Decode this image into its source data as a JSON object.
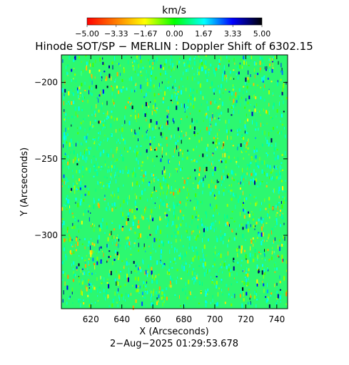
{
  "chart_data": {
    "type": "heatmap",
    "title": "Hinode SOT/SP − MERLIN : Doppler Shift of 6302.15",
    "xlabel": "X (Arcseconds)",
    "ylabel": "Y (Arcseconds)",
    "xlim": [
      601,
      747
    ],
    "ylim": [
      -348,
      -182
    ],
    "x_ticks": [
      620,
      640,
      660,
      680,
      700,
      720,
      740
    ],
    "y_ticks": [
      -200,
      -250,
      -300
    ],
    "x_tick_labels": [
      "620",
      "640",
      "660",
      "680",
      "700",
      "720",
      "740"
    ],
    "y_tick_labels": [
      "−200",
      "−250",
      "−300"
    ],
    "colorbar": {
      "unit": "km/s",
      "range": [
        -5.0,
        5.0
      ],
      "tick_labels": [
        "−5.00",
        "−3.33",
        "−1.67",
        "0.00",
        "1.67",
        "3.33",
        "5.00"
      ],
      "colors": [
        "#ff0000",
        "#ff8000",
        "#ffff00",
        "#00ff00",
        "#00ffff",
        "#0000ff",
        "#000000"
      ]
    },
    "field": {
      "dominant_value": 0.4,
      "dominant_color": "#2cf870",
      "description_values_kms": [
        -3.0,
        -1.5,
        0.0,
        1.0,
        2.5,
        4.0
      ]
    },
    "timestamp": "2−Aug−2025 01:29:53.678"
  }
}
